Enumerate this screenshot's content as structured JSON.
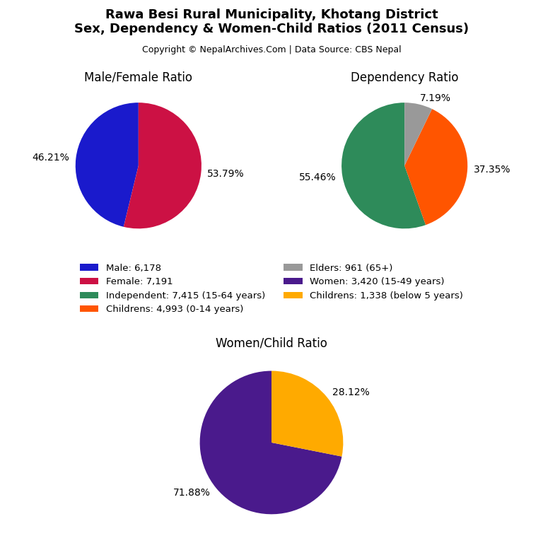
{
  "title": "Rawa Besi Rural Municipality, Khotang District\nSex, Dependency & Women-Child Ratios (2011 Census)",
  "subtitle": "Copyright © NepalArchives.Com | Data Source: CBS Nepal",
  "legend": "center",
  "chart_data": [
    {
      "type": "pie",
      "title": "Male/Female Ratio",
      "categories": [
        "Male: 6,178",
        "Female: 7,191"
      ],
      "values": [
        46.21,
        53.79
      ],
      "value_labels": [
        "46.21%",
        "53.79%"
      ],
      "colors": [
        "#1a1acc",
        "#cc1144"
      ],
      "data_labels": true
    },
    {
      "type": "pie",
      "title": "Dependency Ratio",
      "categories": [
        "Independent: 7,415 (15-64 years)",
        "Childrens: 4,993 (0-14 years)",
        "Elders: 961 (65+)"
      ],
      "values": [
        55.46,
        37.35,
        7.19
      ],
      "value_labels": [
        "55.46%",
        "37.35%",
        "7.19%"
      ],
      "colors": [
        "#2e8b5a",
        "#ff5500",
        "#999999"
      ],
      "data_labels": true
    },
    {
      "type": "pie",
      "title": "Women/Child Ratio",
      "categories": [
        "Women: 3,420 (15-49 years)",
        "Childrens: 1,338 (below 5 years)"
      ],
      "values": [
        71.88,
        28.12
      ],
      "value_labels": [
        "71.88%",
        "28.12%"
      ],
      "colors": [
        "#4a1a8c",
        "#ffaa00"
      ],
      "data_labels": true
    }
  ]
}
